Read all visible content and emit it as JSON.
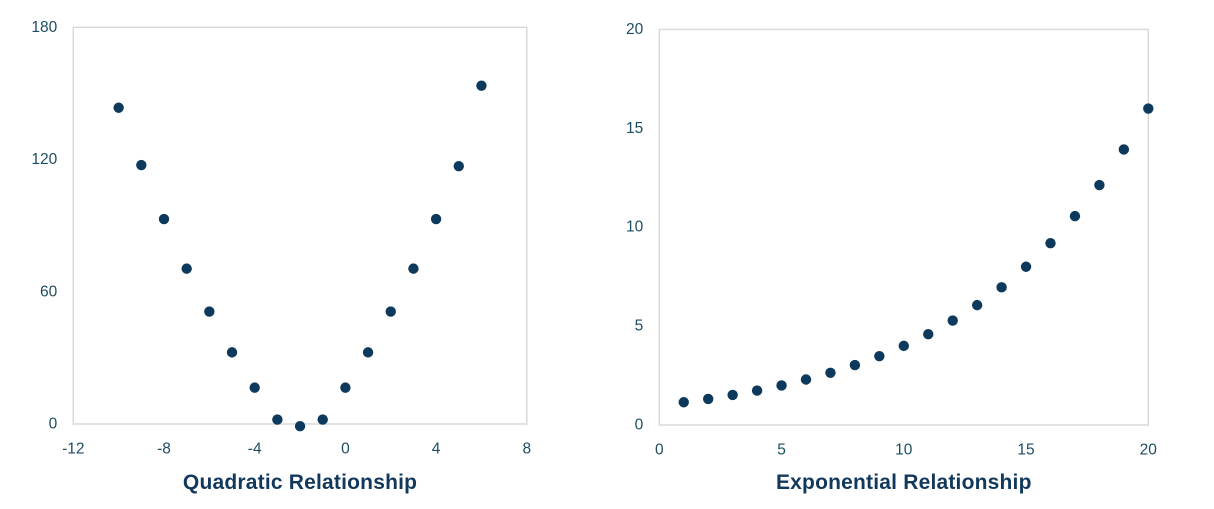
{
  "chart_data": [
    {
      "type": "scatter",
      "title": "Quadratic Relationship",
      "x": [
        -10,
        -9,
        -8,
        -7,
        -6,
        -5,
        -4,
        -3,
        -2,
        -1,
        0,
        1,
        2,
        3,
        4,
        5,
        6
      ],
      "y": [
        143.5,
        117.5,
        93,
        70.5,
        51,
        32.5,
        16.5,
        2,
        -1,
        2,
        16.5,
        32.5,
        51,
        70.5,
        93,
        117,
        153.5
      ],
      "xlim": [
        -12,
        8
      ],
      "ylim": [
        0,
        180
      ],
      "x_ticks": [
        -12,
        -8,
        -4,
        0,
        4,
        8
      ],
      "y_ticks": [
        0,
        60,
        120,
        180
      ],
      "grid": false,
      "legend": false,
      "marker": "circle"
    },
    {
      "type": "scatter",
      "title": "Exponential Relationship",
      "x": [
        1,
        2,
        3,
        4,
        5,
        6,
        7,
        8,
        9,
        10,
        11,
        12,
        13,
        14,
        15,
        16,
        17,
        18,
        19,
        20
      ],
      "y": [
        1.15,
        1.32,
        1.52,
        1.74,
        2.0,
        2.3,
        2.64,
        3.03,
        3.48,
        4.0,
        4.59,
        5.28,
        6.06,
        6.96,
        8.0,
        9.19,
        10.56,
        12.13,
        13.93,
        16.0
      ],
      "xlim": [
        0,
        20
      ],
      "ylim": [
        0,
        20
      ],
      "x_ticks": [
        0,
        5,
        10,
        15,
        20
      ],
      "y_ticks": [
        0,
        5,
        10,
        15,
        20
      ],
      "grid": false,
      "legend": false,
      "marker": "circle"
    }
  ],
  "styles": {
    "marker_color": "#0d3a5c",
    "title_color": "#12395c",
    "tick_label_color": "#1d4d63",
    "plot_border_color": "#d9d9d9",
    "background": "#ffffff"
  }
}
